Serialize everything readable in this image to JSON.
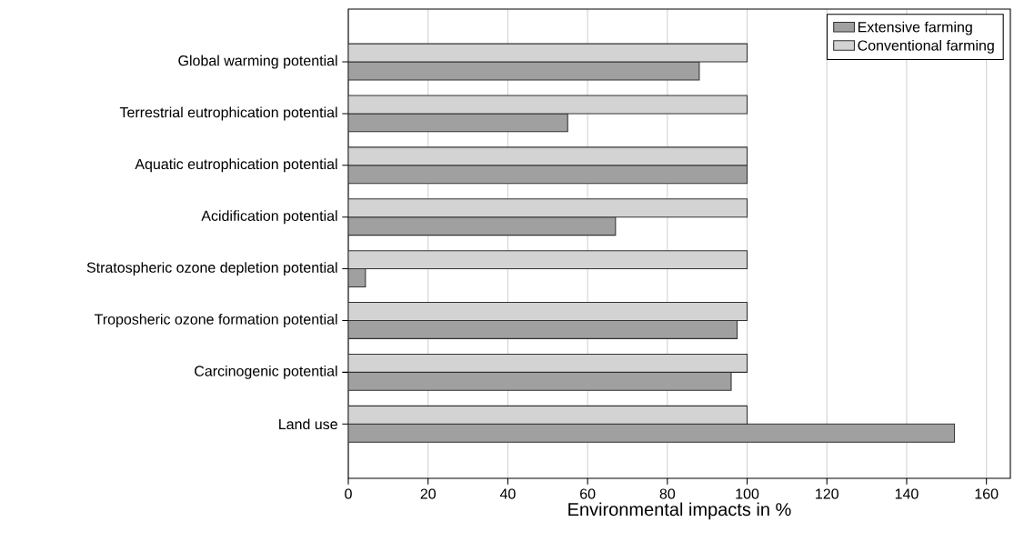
{
  "chart_data": {
    "type": "bar",
    "orientation": "horizontal",
    "xlabel": "Environmental impacts in %",
    "categories": [
      "Global warming potential",
      "Terrestrial eutrophication potential",
      "Aquatic eutrophication potential",
      "Acidification potential",
      "Stratospheric ozone depletion potential",
      "Troposheric ozone formation potential",
      "Carcinogenic potential",
      "Land use"
    ],
    "series": [
      {
        "name": "Extensive farming",
        "color": "#a0a0a0",
        "values": [
          88,
          55,
          100,
          67,
          4.3,
          97.5,
          96,
          152
        ]
      },
      {
        "name": "Conventional farming",
        "color": "#d3d3d3",
        "values": [
          100,
          100,
          100,
          100,
          100,
          100,
          100,
          100
        ]
      }
    ],
    "xlim": [
      0,
      166
    ],
    "xticks": [
      0,
      20,
      40,
      60,
      80,
      100,
      120,
      140,
      160
    ],
    "grid": "x",
    "legend": "top right"
  }
}
